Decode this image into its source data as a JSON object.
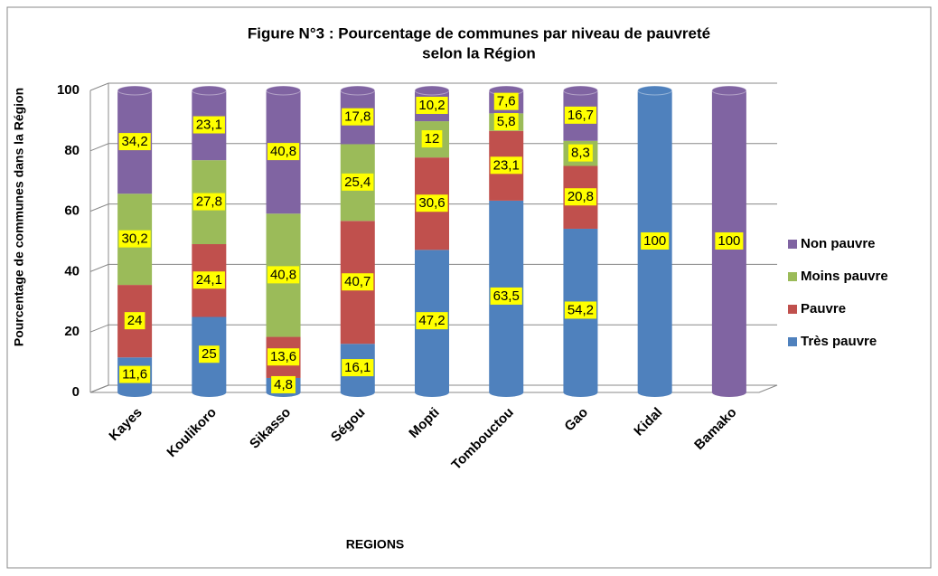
{
  "chart_data": {
    "type": "stacked_bar",
    "title": [
      "Figure N°3 : Pourcentage de communes par niveau de pauvreté",
      "selon la Région"
    ],
    "x_label": "REGIONS",
    "y_label": "Pourcentage de communes dans la Région",
    "categories": [
      "Kayes",
      "Koulikoro",
      "Sikasso",
      "Ségou",
      "Mopti",
      "Tombouctou",
      "Gao",
      "Kidal",
      "Bamako"
    ],
    "series": [
      {
        "name": "Très pauvre",
        "color": "#4f81bd",
        "values": [
          11.6,
          25,
          4.8,
          16.1,
          47.2,
          63.5,
          54.2,
          100,
          null
        ],
        "value_labels": [
          "11,6",
          "25",
          "4,8",
          "16,1",
          "47,2",
          "63,5",
          "54,2",
          "100",
          null
        ]
      },
      {
        "name": "Pauvre",
        "color": "#c0504d",
        "values": [
          24,
          24.1,
          13.6,
          40.7,
          30.6,
          23.1,
          20.8,
          null,
          null
        ],
        "value_labels": [
          "24",
          "24,1",
          "13,6",
          "40,7",
          "30,6",
          "23,1",
          "20,8",
          null,
          null
        ]
      },
      {
        "name": "Moins pauvre",
        "color": "#9bbb59",
        "values": [
          30.2,
          27.8,
          40.8,
          25.4,
          12,
          5.8,
          8.3,
          null,
          null
        ],
        "value_labels": [
          "30,2",
          "27,8",
          "40,8",
          "25,4",
          "12",
          "5,8",
          "8,3",
          null,
          null
        ]
      },
      {
        "name": "Non pauvre",
        "color": "#8064a2",
        "values": [
          34.2,
          23.1,
          40.8,
          17.8,
          10.2,
          7.6,
          16.7,
          null,
          100
        ],
        "value_labels": [
          "34,2",
          "23,1",
          "40,8",
          "17,8",
          "10,2",
          "7,6",
          "16,7",
          null,
          "100"
        ]
      }
    ],
    "ylim": [
      0,
      100
    ],
    "yticks": [
      0,
      20,
      40,
      60,
      80,
      100
    ],
    "grid": true,
    "legend": "right"
  }
}
